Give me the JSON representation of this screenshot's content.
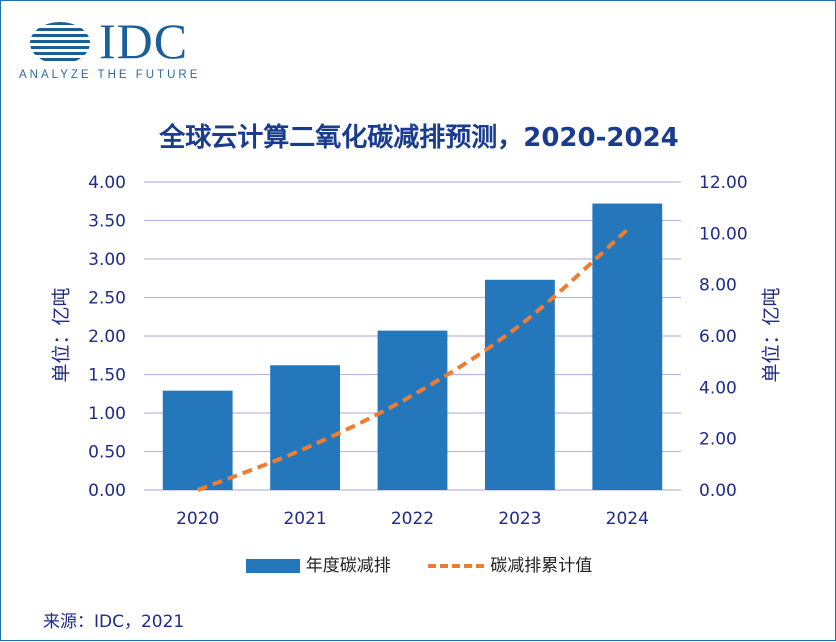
{
  "logo": {
    "word": "IDC",
    "tagline": "ANALYZE THE FUTURE"
  },
  "colors": {
    "bar": "#2477bb",
    "line": "#ed7d31",
    "grid": "#b9b9dd",
    "axis_text": "#1f2a8a",
    "title": "#1a3c8f"
  },
  "chart_data": {
    "type": "bar",
    "title": "全球云计算二氧化碳减排预测，2020-2024",
    "categories": [
      "2020",
      "2021",
      "2022",
      "2023",
      "2024"
    ],
    "series": [
      {
        "name": "年度碳减排",
        "type": "bar",
        "axis": "left",
        "values": [
          1.29,
          1.62,
          2.07,
          2.73,
          3.72
        ]
      },
      {
        "name": "碳减排累计值",
        "type": "line",
        "style": "dashed",
        "axis": "right",
        "values": [
          0.0,
          1.62,
          3.69,
          6.42,
          10.14
        ]
      }
    ],
    "ylabel_left": "单位：亿吨",
    "ylabel_right": "单位：亿吨",
    "ylim_left": [
      0,
      4
    ],
    "ylim_right": [
      0,
      12
    ],
    "yticks_left": [
      "0.00",
      "0.50",
      "1.00",
      "1.50",
      "2.00",
      "2.50",
      "3.00",
      "3.50",
      "4.00"
    ],
    "yticks_right": [
      "0.00",
      "2.00",
      "4.00",
      "6.00",
      "8.00",
      "10.00",
      "12.00"
    ],
    "grid": true,
    "legend_position": "bottom"
  },
  "source": "来源：IDC，2021"
}
